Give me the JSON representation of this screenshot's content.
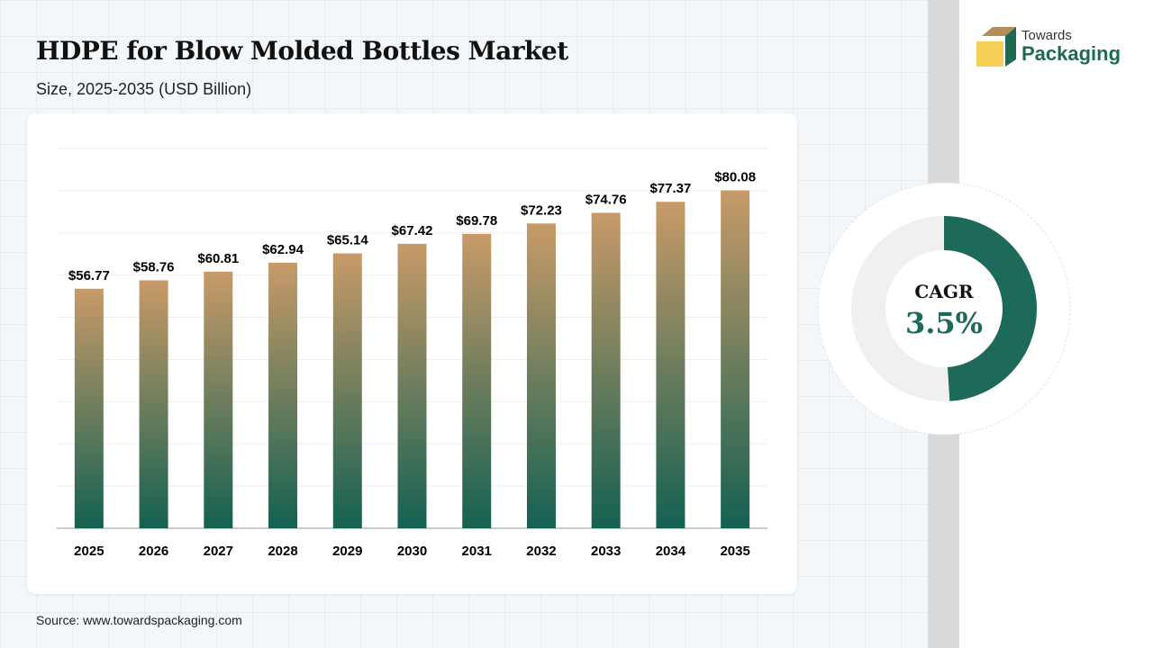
{
  "header": {
    "title": "HDPE for Blow Molded Bottles Market",
    "subtitle": "Size, 2025-2035 (USD Billion)"
  },
  "logo": {
    "line1": "Towards",
    "line2": "Packaging"
  },
  "source": "Source: www.towardspackaging.com",
  "cagr": {
    "label": "CAGR",
    "value": "3.5%",
    "fill_fraction": 0.49
  },
  "colors": {
    "bar_top": "#c89a68",
    "bar_bottom": "#146152",
    "accent": "#1d6a5a",
    "donut_bg": "#f0f0f0"
  },
  "chart_data": {
    "type": "bar",
    "ylim": [
      0,
      90
    ],
    "grid": true,
    "categories": [
      "2025",
      "2026",
      "2027",
      "2028",
      "2029",
      "2030",
      "2031",
      "2032",
      "2033",
      "2034",
      "2035"
    ],
    "values": [
      56.77,
      58.76,
      60.81,
      62.94,
      65.14,
      67.42,
      69.78,
      72.23,
      74.76,
      77.37,
      80.08
    ],
    "labels": [
      "$56.77",
      "$58.76",
      "$60.81",
      "$62.94",
      "$65.14",
      "$67.42",
      "$69.78",
      "$72.23",
      "$74.76",
      "$77.37",
      "$80.08"
    ]
  }
}
